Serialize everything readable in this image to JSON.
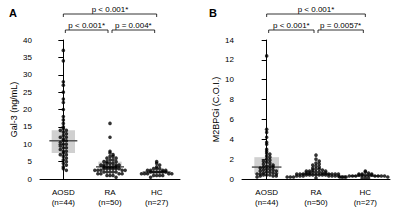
{
  "chart_data": [
    {
      "type": "scatter",
      "title": "A",
      "ylabel": "Gal-3 (ng/mL)",
      "color": "#000000",
      "categories": [
        "AOSD\n(n=44)",
        "RA\n(n=50)",
        "HC\n(n=27)"
      ],
      "groups": [
        {
          "values": [
            37,
            34,
            28,
            27,
            25,
            23,
            22,
            20,
            18,
            17,
            16,
            15,
            14.5,
            14,
            14,
            13.5,
            13,
            12.5,
            12,
            12,
            11.5,
            11,
            11,
            10.5,
            10,
            10,
            9.5,
            9,
            9,
            8.5,
            8,
            8,
            7.5,
            7,
            7,
            6.5,
            6,
            5.5,
            5,
            4.5,
            4,
            3.5,
            3,
            2.5
          ],
          "median": 11,
          "q1": 7.5,
          "q3": 14
        },
        {
          "values": [
            16,
            12,
            8,
            7.5,
            7,
            6.5,
            6.5,
            6,
            6,
            5.5,
            5.5,
            5,
            5,
            5,
            4.5,
            4.5,
            4.5,
            4,
            4,
            4,
            4,
            3.5,
            3.5,
            3.5,
            3.5,
            3.5,
            3,
            3,
            3,
            3,
            3,
            3,
            2.5,
            2.5,
            2.5,
            2.5,
            2.5,
            2,
            2,
            2,
            2,
            2,
            1.5,
            1.5,
            1.5,
            1.5,
            1,
            1,
            1,
            0.5
          ],
          "median": 3.5,
          "q1": 2.5,
          "q3": 5
        },
        {
          "values": [
            5,
            4.5,
            4,
            3.5,
            3,
            3,
            3,
            2.5,
            2.5,
            2.5,
            2.5,
            2,
            2,
            2,
            2,
            2,
            2,
            1.5,
            1.5,
            1.5,
            1.5,
            1.5,
            1,
            1,
            1,
            1,
            0.5
          ],
          "median": 2,
          "q1": 1.5,
          "q3": 2.5
        }
      ],
      "annotations": [
        {
          "from": 0,
          "to": 2,
          "label": "p < 0.001*"
        },
        {
          "from": 0,
          "to": 1,
          "label": "p < 0.001*"
        },
        {
          "from": 1,
          "to": 2,
          "label": "p = 0.004*"
        }
      ],
      "ylim": [
        0,
        40
      ],
      "yticks": [
        0,
        5,
        10,
        15,
        20,
        25,
        30,
        35,
        40
      ],
      "grid": false
    },
    {
      "type": "scatter",
      "title": "B",
      "ylabel": "M2BPGi (C.O.I.)",
      "color": "#000000",
      "categories": [
        "AOSD\n(n=44)",
        "RA\n(n=50)",
        "HC\n(n=27)"
      ],
      "groups": [
        {
          "values": [
            12.4,
            5,
            4.7,
            4.2,
            3.7,
            3.5,
            3,
            2.8,
            2.6,
            2.5,
            2.3,
            2.2,
            2,
            1.9,
            1.8,
            1.7,
            1.6,
            1.5,
            1.4,
            1.3,
            1.3,
            1.2,
            1.2,
            1.1,
            1,
            1,
            0.9,
            0.9,
            0.8,
            0.8,
            0.7,
            0.7,
            0.6,
            0.6,
            0.5,
            0.5,
            0.5,
            0.4,
            0.4,
            0.4,
            0.3,
            0.3,
            0.3,
            0.2
          ],
          "median": 1.2,
          "q1": 0.5,
          "q3": 2.2
        },
        {
          "values": [
            2.4,
            2,
            1.8,
            1.6,
            1.5,
            1.4,
            1.3,
            1.2,
            1.1,
            1,
            1,
            0.9,
            0.9,
            0.8,
            0.8,
            0.8,
            0.7,
            0.7,
            0.7,
            0.6,
            0.6,
            0.6,
            0.6,
            0.5,
            0.5,
            0.5,
            0.5,
            0.5,
            0.5,
            0.5,
            0.4,
            0.4,
            0.4,
            0.4,
            0.4,
            0.4,
            0.4,
            0.3,
            0.3,
            0.3,
            0.3,
            0.3,
            0.3,
            0.3,
            0.2,
            0.2,
            0.2,
            0.2,
            0.2,
            0.1
          ],
          "median": 0.5,
          "q1": 0.3,
          "q3": 0.8
        },
        {
          "values": [
            0.8,
            0.7,
            0.6,
            0.5,
            0.5,
            0.5,
            0.4,
            0.4,
            0.4,
            0.4,
            0.4,
            0.3,
            0.3,
            0.3,
            0.3,
            0.3,
            0.3,
            0.3,
            0.2,
            0.2,
            0.2,
            0.2,
            0.2,
            0.2,
            0.1,
            0.1,
            0.1
          ],
          "median": 0.3,
          "q1": 0.2,
          "q3": 0.4
        }
      ],
      "annotations": [
        {
          "from": 0,
          "to": 2,
          "label": "p < 0.001*"
        },
        {
          "from": 0,
          "to": 1,
          "label": "p < 0.001*"
        },
        {
          "from": 1,
          "to": 2,
          "label": "p = 0.0057*"
        }
      ],
      "ylim": [
        0,
        14
      ],
      "yticks": [
        0,
        2,
        4,
        6,
        8,
        10,
        12,
        14
      ],
      "grid": false
    }
  ]
}
